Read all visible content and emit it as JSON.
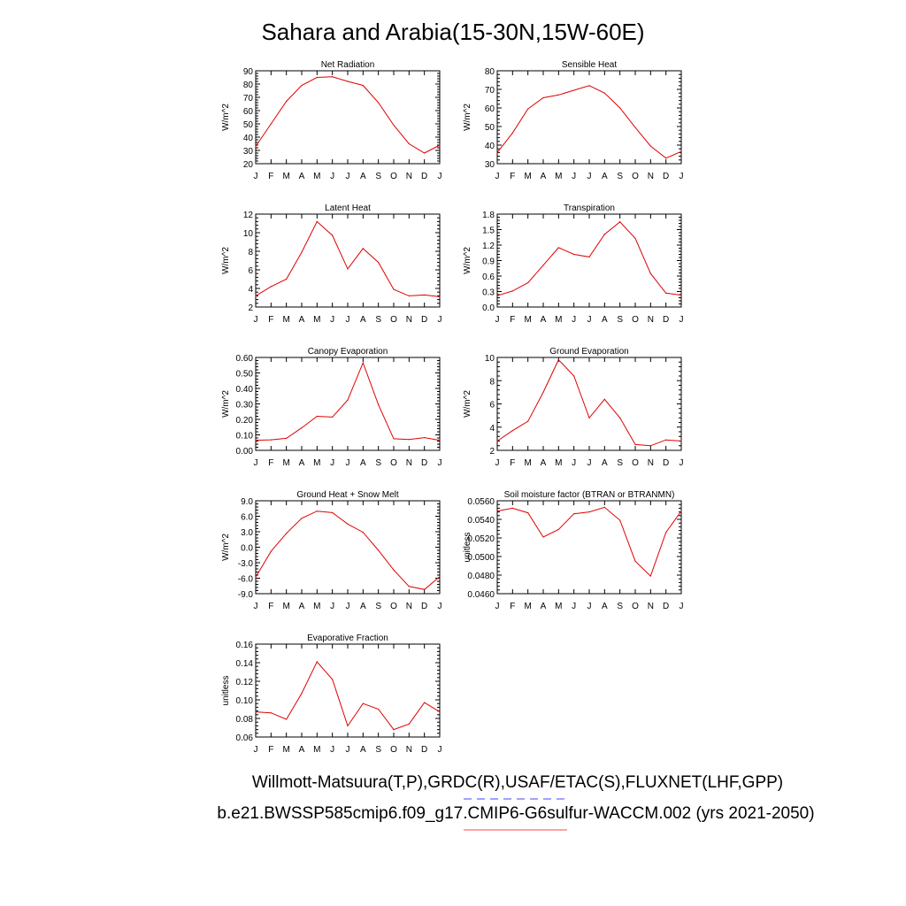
{
  "page_title": "Sahara and Arabia(15-30N,15W-60E)",
  "footer": {
    "line1": "Willmott-Matsuura(T,P),GRDC(R),USAF/ETAC(S),FLUXNET(LHF,GPP)",
    "line2": "b.e21.BWSSP585cmip6.f09_g17.CMIP6-G6sulfur-WACCM.002 (yrs 2021-2050)",
    "line1_marker_color": "#6a6aff",
    "line2_marker_color": "#ff6a6a"
  },
  "colors": {
    "series": "#e00000",
    "axes": "#000000"
  },
  "chart_data": [
    {
      "type": "line",
      "title": "Net Radiation",
      "ylabel": "W/m^2",
      "categories": [
        "J",
        "F",
        "M",
        "A",
        "M",
        "J",
        "J",
        "A",
        "S",
        "O",
        "N",
        "D",
        "J"
      ],
      "ylim": [
        20,
        90
      ],
      "yticks": [
        "20",
        "30",
        "40",
        "50",
        "60",
        "70",
        "80",
        "90"
      ],
      "values": [
        33,
        50,
        67,
        79,
        85,
        85.5,
        82,
        79,
        66,
        49,
        35,
        28,
        34
      ]
    },
    {
      "type": "line",
      "title": "Sensible Heat",
      "ylabel": "W/m^2",
      "categories": [
        "J",
        "F",
        "M",
        "A",
        "M",
        "J",
        "J",
        "A",
        "S",
        "O",
        "N",
        "D",
        "J"
      ],
      "ylim": [
        30,
        80
      ],
      "yticks": [
        "30",
        "40",
        "50",
        "60",
        "70",
        "80"
      ],
      "values": [
        36,
        46.5,
        59.5,
        65.5,
        67,
        69.5,
        72,
        68,
        60,
        49.5,
        39.5,
        33,
        36.5
      ]
    },
    {
      "type": "line",
      "title": "Latent Heat",
      "ylabel": "W/m^2",
      "categories": [
        "J",
        "F",
        "M",
        "A",
        "M",
        "J",
        "J",
        "A",
        "S",
        "O",
        "N",
        "D",
        "J"
      ],
      "ylim": [
        2,
        12
      ],
      "yticks": [
        "2",
        "4",
        "6",
        "8",
        "10",
        "12"
      ],
      "values": [
        3.2,
        4.2,
        5.0,
        7.9,
        11.2,
        9.7,
        6.1,
        8.3,
        6.8,
        3.9,
        3.2,
        3.3,
        3.1
      ]
    },
    {
      "type": "line",
      "title": "Transpiration",
      "ylabel": "W/m^2",
      "categories": [
        "J",
        "F",
        "M",
        "A",
        "M",
        "J",
        "J",
        "A",
        "S",
        "O",
        "N",
        "D",
        "J"
      ],
      "ylim": [
        0,
        1.8
      ],
      "yticks": [
        "0.0",
        "0.3",
        "0.6",
        "0.9",
        "1.2",
        "1.5",
        "1.8"
      ],
      "values": [
        0.22,
        0.31,
        0.47,
        0.81,
        1.15,
        1.02,
        0.97,
        1.41,
        1.65,
        1.33,
        0.65,
        0.27,
        0.23
      ]
    },
    {
      "type": "line",
      "title": "Canopy Evaporation",
      "ylabel": "W/m^2",
      "categories": [
        "J",
        "F",
        "M",
        "A",
        "M",
        "J",
        "J",
        "A",
        "S",
        "O",
        "N",
        "D",
        "J"
      ],
      "ylim": [
        0,
        0.6
      ],
      "yticks": [
        "0.00",
        "0.10",
        "0.20",
        "0.30",
        "0.40",
        "0.50",
        "0.60"
      ],
      "values": [
        0.065,
        0.068,
        0.078,
        0.145,
        0.22,
        0.215,
        0.325,
        0.565,
        0.295,
        0.075,
        0.07,
        0.082,
        0.065
      ]
    },
    {
      "type": "line",
      "title": "Ground Evaporation",
      "ylabel": "W/m^2",
      "categories": [
        "J",
        "F",
        "M",
        "A",
        "M",
        "J",
        "J",
        "A",
        "S",
        "O",
        "N",
        "D",
        "J"
      ],
      "ylim": [
        2,
        10
      ],
      "yticks": [
        "2",
        "4",
        "6",
        "8",
        "10"
      ],
      "values": [
        2.8,
        3.7,
        4.5,
        7.0,
        9.8,
        8.4,
        4.8,
        6.4,
        4.8,
        2.5,
        2.4,
        2.9,
        2.8
      ]
    },
    {
      "type": "line",
      "title": "Ground Heat + Snow Melt",
      "ylabel": "W/m^2",
      "categories": [
        "J",
        "F",
        "M",
        "A",
        "M",
        "J",
        "J",
        "A",
        "S",
        "O",
        "N",
        "D",
        "J"
      ],
      "ylim": [
        -9,
        9
      ],
      "yticks": [
        "-9.0",
        "-6.0",
        "-3.0",
        "0.0",
        "3.0",
        "6.0",
        "9.0"
      ],
      "values": [
        -5.8,
        -0.8,
        2.7,
        5.6,
        7.0,
        6.7,
        4.5,
        2.9,
        -0.6,
        -4.4,
        -7.6,
        -8.2,
        -5.7
      ]
    },
    {
      "type": "line",
      "title": "Soil moisture factor (BTRAN or BTRANMN)",
      "ylabel": "unitless",
      "categories": [
        "J",
        "F",
        "M",
        "A",
        "M",
        "J",
        "J",
        "A",
        "S",
        "O",
        "N",
        "D",
        "J"
      ],
      "ylim": [
        0.046,
        0.056
      ],
      "yticks": [
        "0.0460",
        "0.0480",
        "0.0500",
        "0.0520",
        "0.0540",
        "0.0560"
      ],
      "values": [
        0.0549,
        0.0552,
        0.0547,
        0.0521,
        0.0529,
        0.0546,
        0.0548,
        0.0553,
        0.0539,
        0.0495,
        0.0479,
        0.0526,
        0.0549
      ]
    },
    {
      "type": "line",
      "title": "Evaporative Fraction",
      "ylabel": "unitless",
      "categories": [
        "J",
        "F",
        "M",
        "A",
        "M",
        "J",
        "J",
        "A",
        "S",
        "O",
        "N",
        "D",
        "J"
      ],
      "ylim": [
        0.06,
        0.16
      ],
      "yticks": [
        "0.06",
        "0.08",
        "0.10",
        "0.12",
        "0.14",
        "0.16"
      ],
      "values": [
        0.087,
        0.086,
        0.079,
        0.107,
        0.141,
        0.122,
        0.072,
        0.096,
        0.09,
        0.068,
        0.074,
        0.097,
        0.087
      ]
    }
  ]
}
